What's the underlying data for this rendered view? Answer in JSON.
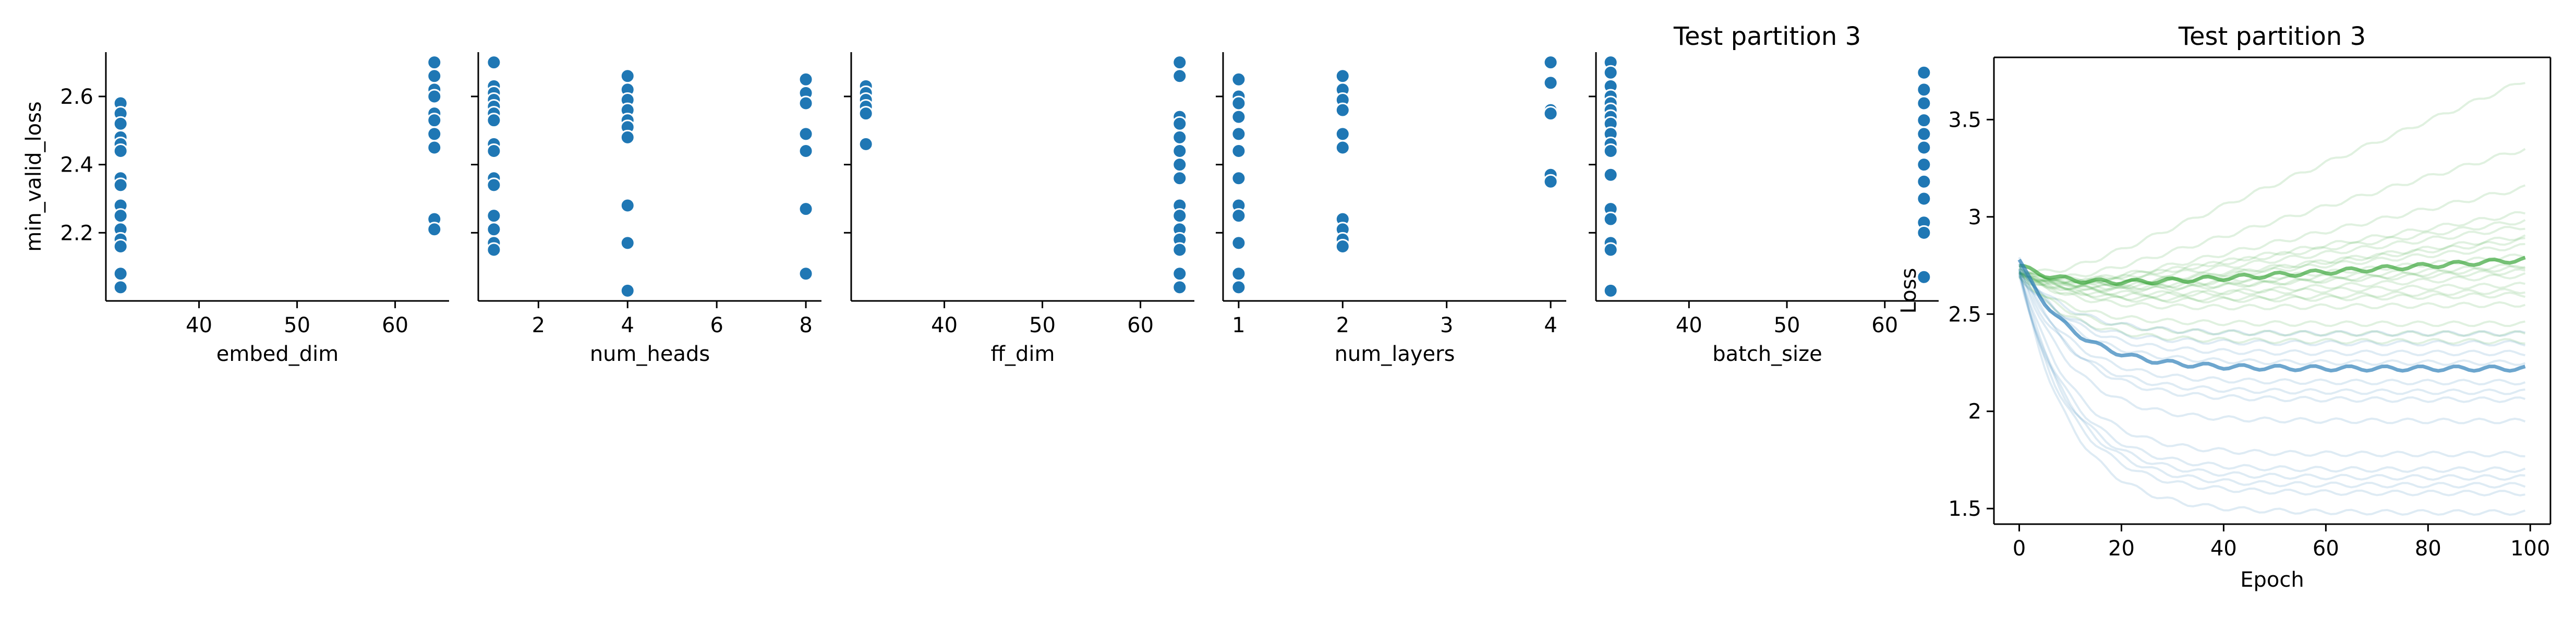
{
  "figure": {
    "suptitle": "Test partition 3"
  },
  "chart_data": [
    {
      "type": "scatter",
      "xlabel": "embed_dim",
      "ylabel": "min_valid_loss",
      "xlim": [
        30.5,
        65.5
      ],
      "ylim": [
        2.0,
        2.73
      ],
      "xticks": [
        40,
        50,
        60
      ],
      "yticks": [
        2.2,
        2.4,
        2.6
      ],
      "color": "#1f77b4",
      "points": [
        [
          32,
          2.58
        ],
        [
          32,
          2.55
        ],
        [
          32,
          2.52
        ],
        [
          32,
          2.48
        ],
        [
          32,
          2.46
        ],
        [
          32,
          2.44
        ],
        [
          32,
          2.36
        ],
        [
          32,
          2.34
        ],
        [
          32,
          2.28
        ],
        [
          32,
          2.25
        ],
        [
          32,
          2.21
        ],
        [
          32,
          2.18
        ],
        [
          32,
          2.16
        ],
        [
          32,
          2.08
        ],
        [
          32,
          2.04
        ],
        [
          64,
          2.7
        ],
        [
          64,
          2.66
        ],
        [
          64,
          2.62
        ],
        [
          64,
          2.6
        ],
        [
          64,
          2.55
        ],
        [
          64,
          2.53
        ],
        [
          64,
          2.49
        ],
        [
          64,
          2.45
        ],
        [
          64,
          2.24
        ],
        [
          64,
          2.21
        ]
      ]
    },
    {
      "type": "scatter",
      "xlabel": "num_heads",
      "xlim": [
        0.65,
        8.35
      ],
      "ylim": [
        2.0,
        2.73
      ],
      "xticks": [
        2,
        4,
        6,
        8
      ],
      "yticks": [
        2.2,
        2.4,
        2.6
      ],
      "color": "#1f77b4",
      "points": [
        [
          1,
          2.7
        ],
        [
          1,
          2.63
        ],
        [
          1,
          2.61
        ],
        [
          1,
          2.59
        ],
        [
          1,
          2.57
        ],
        [
          1,
          2.55
        ],
        [
          1,
          2.53
        ],
        [
          1,
          2.46
        ],
        [
          1,
          2.44
        ],
        [
          1,
          2.36
        ],
        [
          1,
          2.34
        ],
        [
          1,
          2.25
        ],
        [
          1,
          2.21
        ],
        [
          1,
          2.17
        ],
        [
          1,
          2.15
        ],
        [
          4,
          2.66
        ],
        [
          4,
          2.62
        ],
        [
          4,
          2.59
        ],
        [
          4,
          2.56
        ],
        [
          4,
          2.53
        ],
        [
          4,
          2.51
        ],
        [
          4,
          2.48
        ],
        [
          4,
          2.28
        ],
        [
          4,
          2.17
        ],
        [
          4,
          2.03
        ],
        [
          8,
          2.65
        ],
        [
          8,
          2.61
        ],
        [
          8,
          2.58
        ],
        [
          8,
          2.49
        ],
        [
          8,
          2.44
        ],
        [
          8,
          2.27
        ],
        [
          8,
          2.08
        ]
      ]
    },
    {
      "type": "scatter",
      "xlabel": "ff_dim",
      "xlim": [
        30.5,
        65.5
      ],
      "ylim": [
        2.0,
        2.73
      ],
      "xticks": [
        40,
        50,
        60
      ],
      "yticks": [
        2.2,
        2.4,
        2.6
      ],
      "color": "#1f77b4",
      "points": [
        [
          32,
          2.63
        ],
        [
          32,
          2.61
        ],
        [
          32,
          2.59
        ],
        [
          32,
          2.57
        ],
        [
          32,
          2.55
        ],
        [
          32,
          2.46
        ],
        [
          64,
          2.7
        ],
        [
          64,
          2.66
        ],
        [
          64,
          2.54
        ],
        [
          64,
          2.52
        ],
        [
          64,
          2.48
        ],
        [
          64,
          2.44
        ],
        [
          64,
          2.4
        ],
        [
          64,
          2.36
        ],
        [
          64,
          2.28
        ],
        [
          64,
          2.25
        ],
        [
          64,
          2.21
        ],
        [
          64,
          2.18
        ],
        [
          64,
          2.15
        ],
        [
          64,
          2.08
        ],
        [
          64,
          2.04
        ]
      ]
    },
    {
      "type": "scatter",
      "xlabel": "num_layers",
      "xlim": [
        0.85,
        4.15
      ],
      "ylim": [
        2.0,
        2.73
      ],
      "xticks": [
        1,
        2,
        3,
        4
      ],
      "yticks": [
        2.2,
        2.4,
        2.6
      ],
      "color": "#1f77b4",
      "points": [
        [
          1,
          2.65
        ],
        [
          1,
          2.6
        ],
        [
          1,
          2.58
        ],
        [
          1,
          2.54
        ],
        [
          1,
          2.49
        ],
        [
          1,
          2.44
        ],
        [
          1,
          2.36
        ],
        [
          1,
          2.28
        ],
        [
          1,
          2.25
        ],
        [
          1,
          2.17
        ],
        [
          1,
          2.08
        ],
        [
          1,
          2.04
        ],
        [
          2,
          2.66
        ],
        [
          2,
          2.62
        ],
        [
          2,
          2.59
        ],
        [
          2,
          2.56
        ],
        [
          2,
          2.49
        ],
        [
          2,
          2.45
        ],
        [
          2,
          2.24
        ],
        [
          2,
          2.21
        ],
        [
          2,
          2.18
        ],
        [
          2,
          2.16
        ],
        [
          4,
          2.7
        ],
        [
          4,
          2.64
        ],
        [
          4,
          2.56
        ],
        [
          4,
          2.55
        ],
        [
          4,
          2.37
        ],
        [
          4,
          2.35
        ]
      ]
    },
    {
      "type": "scatter",
      "xlabel": "batch_size",
      "title": "Test partition 3",
      "xlim": [
        30.5,
        65.5
      ],
      "ylim": [
        2.0,
        2.73
      ],
      "xticks": [
        40,
        50,
        60
      ],
      "yticks": [
        2.2,
        2.4,
        2.6
      ],
      "color": "#1f77b4",
      "points": [
        [
          32,
          2.7
        ],
        [
          32,
          2.67
        ],
        [
          32,
          2.63
        ],
        [
          32,
          2.6
        ],
        [
          32,
          2.58
        ],
        [
          32,
          2.56
        ],
        [
          32,
          2.54
        ],
        [
          32,
          2.52
        ],
        [
          32,
          2.49
        ],
        [
          32,
          2.46
        ],
        [
          32,
          2.44
        ],
        [
          32,
          2.37
        ],
        [
          32,
          2.27
        ],
        [
          32,
          2.24
        ],
        [
          32,
          2.17
        ],
        [
          32,
          2.15
        ],
        [
          32,
          2.03
        ],
        [
          64,
          2.67
        ],
        [
          64,
          2.62
        ],
        [
          64,
          2.58
        ],
        [
          64,
          2.53
        ],
        [
          64,
          2.49
        ],
        [
          64,
          2.45
        ],
        [
          64,
          2.4
        ],
        [
          64,
          2.35
        ],
        [
          64,
          2.3
        ],
        [
          64,
          2.23
        ],
        [
          64,
          2.2
        ],
        [
          64,
          2.07
        ]
      ]
    },
    {
      "type": "line",
      "title": "Test partition 3",
      "xlabel": "Epoch",
      "ylabel": "Loss",
      "xlim": [
        -4.95,
        103.95
      ],
      "ylim": [
        1.42,
        3.82
      ],
      "xticks": [
        0,
        20,
        40,
        60,
        80,
        100
      ],
      "yticks": [
        1.5,
        2.0,
        2.5,
        3.0,
        3.5
      ],
      "grid": false,
      "groups": [
        {
          "color": "#2ca02c",
          "alpha": 0.15,
          "bold_index": 0,
          "curves": [
            {
              "start": 2.75,
              "trough": 2.62,
              "end": 2.78
            },
            {
              "start": 2.72,
              "trough": 2.6,
              "end": 2.72
            },
            {
              "start": 2.74,
              "trough": 2.63,
              "end": 3.7
            },
            {
              "start": 2.72,
              "trough": 2.6,
              "end": 3.35
            },
            {
              "start": 2.73,
              "trough": 2.58,
              "end": 3.15
            },
            {
              "start": 2.71,
              "trough": 2.6,
              "end": 3.02
            },
            {
              "start": 2.72,
              "trough": 2.6,
              "end": 2.95
            },
            {
              "start": 2.7,
              "trough": 2.57,
              "end": 2.9
            },
            {
              "start": 2.72,
              "trough": 2.6,
              "end": 2.85
            },
            {
              "start": 2.7,
              "trough": 2.58,
              "end": 2.8
            },
            {
              "start": 2.73,
              "trough": 2.6,
              "end": 2.75
            },
            {
              "start": 2.71,
              "trough": 2.55,
              "end": 2.7
            },
            {
              "start": 2.7,
              "trough": 2.58,
              "end": 2.65
            },
            {
              "start": 2.69,
              "trough": 2.55,
              "end": 2.6
            },
            {
              "start": 2.72,
              "trough": 2.52,
              "end": 2.55
            },
            {
              "start": 2.7,
              "trough": 2.45,
              "end": 2.45
            },
            {
              "start": 2.71,
              "trough": 2.4,
              "end": 2.4
            },
            {
              "start": 2.7,
              "trough": 2.36,
              "end": 2.36
            },
            {
              "start": 2.72,
              "trough": 2.62,
              "end": 2.98
            },
            {
              "start": 2.7,
              "trough": 2.6,
              "end": 2.88
            },
            {
              "start": 2.71,
              "trough": 2.58,
              "end": 2.74
            },
            {
              "start": 2.73,
              "trough": 2.55,
              "end": 2.62
            }
          ]
        },
        {
          "color": "#1f77b4",
          "alpha": 0.15,
          "bold_index": 0,
          "curves": [
            {
              "start": 2.78,
              "trough": 2.22,
              "end": 2.22
            },
            {
              "start": 2.78,
              "trough": 2.06,
              "end": 2.06
            },
            {
              "start": 2.76,
              "trough": 2.3,
              "end": 2.3
            },
            {
              "start": 2.74,
              "trough": 2.15,
              "end": 2.15
            },
            {
              "start": 2.72,
              "trough": 2.1,
              "end": 2.1
            },
            {
              "start": 2.75,
              "trough": 1.95,
              "end": 1.95
            },
            {
              "start": 2.74,
              "trough": 1.78,
              "end": 1.78
            },
            {
              "start": 2.72,
              "trough": 1.7,
              "end": 1.7
            },
            {
              "start": 2.7,
              "trough": 1.66,
              "end": 1.66
            },
            {
              "start": 2.73,
              "trough": 1.62,
              "end": 1.62
            },
            {
              "start": 2.71,
              "trough": 1.58,
              "end": 1.58
            },
            {
              "start": 2.72,
              "trough": 1.48,
              "end": 1.48
            },
            {
              "start": 2.74,
              "trough": 2.4,
              "end": 2.4
            },
            {
              "start": 2.7,
              "trough": 2.35,
              "end": 2.35
            },
            {
              "start": 2.76,
              "trough": 2.25,
              "end": 2.25
            }
          ]
        }
      ]
    }
  ]
}
